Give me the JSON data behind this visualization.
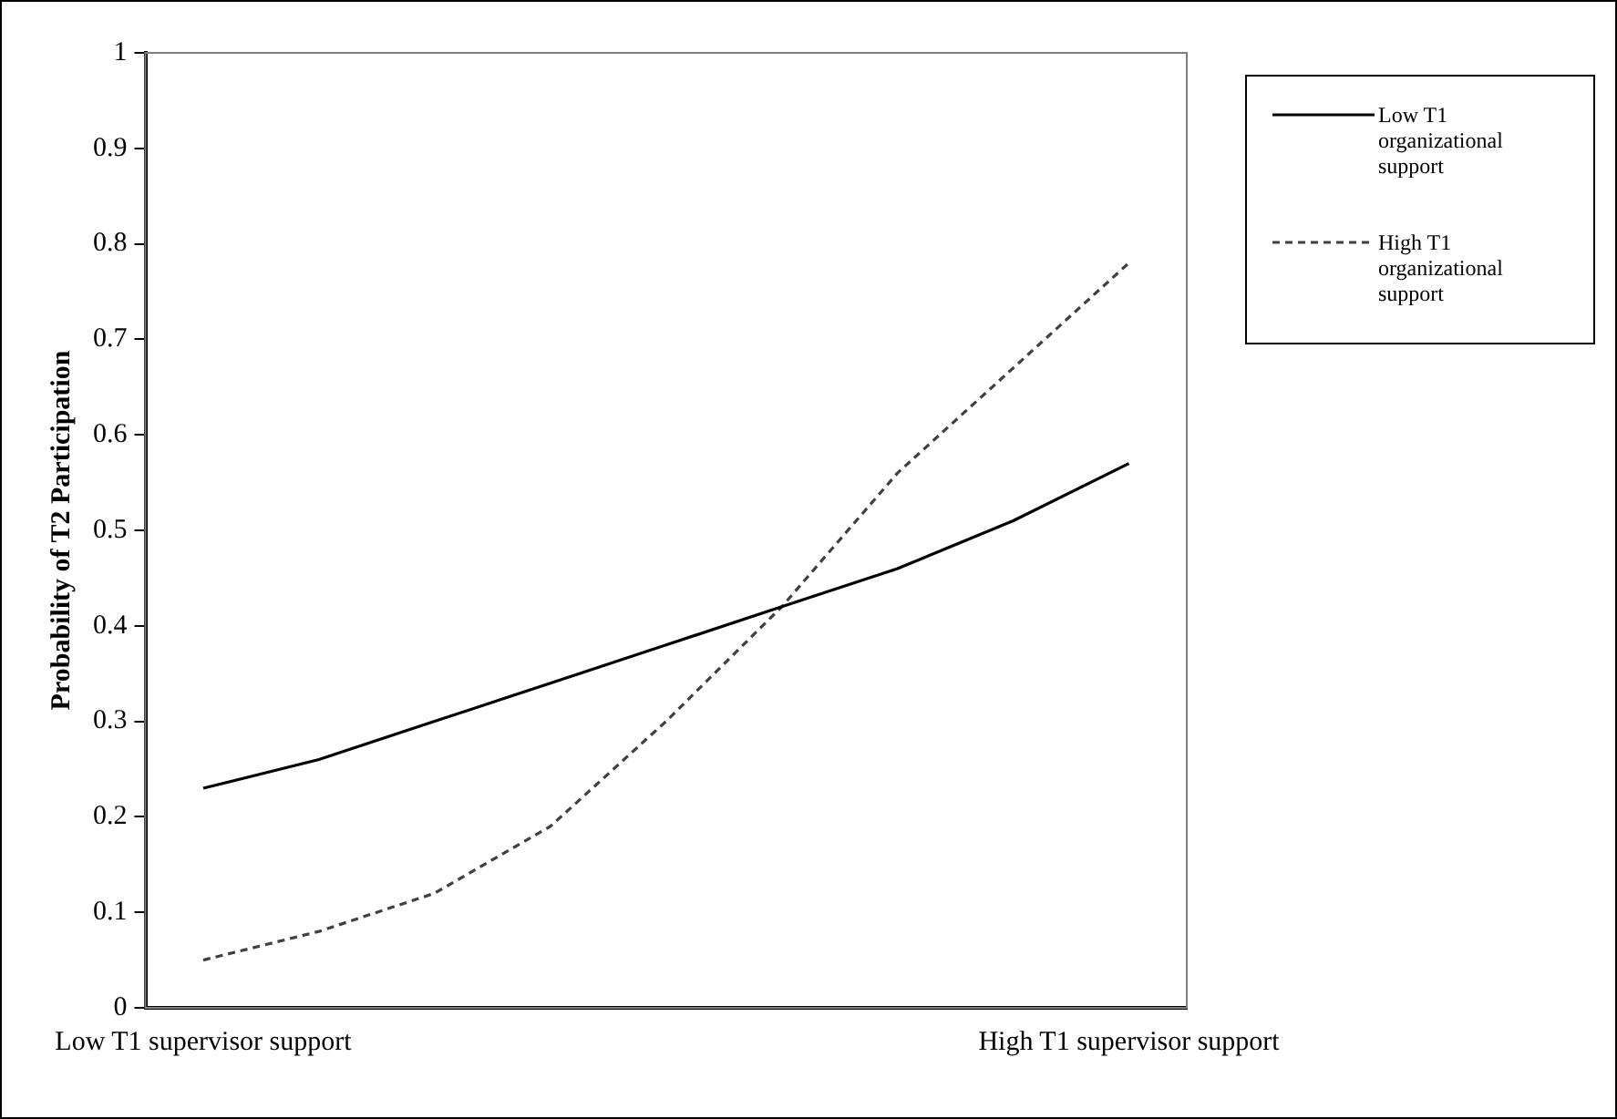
{
  "chart_data": {
    "type": "line",
    "ylabel": "Probability of T2 Participation",
    "categories": [
      "Low T1 supervisor support",
      null,
      null,
      null,
      null,
      null,
      null,
      null,
      "High T1 supervisor support"
    ],
    "series": [
      {
        "name": "Low T1 organizational support",
        "color": "#000000",
        "line_style": "solid",
        "values": [
          0.23,
          0.26,
          0.3,
          0.34,
          0.38,
          0.42,
          0.46,
          0.51,
          0.57
        ]
      },
      {
        "name": "High T1 organizational support",
        "color": "#404040",
        "line_style": "dashed",
        "values": [
          0.05,
          0.08,
          0.12,
          0.19,
          0.3,
          0.42,
          0.56,
          0.67,
          0.78
        ]
      }
    ],
    "ylim": [
      0,
      1
    ],
    "yticks": [
      0,
      0.1,
      0.2,
      0.3,
      0.4,
      0.5,
      0.6,
      0.7,
      0.8,
      0.9,
      1
    ],
    "grid": false,
    "legend": "right",
    "marker": "none"
  }
}
